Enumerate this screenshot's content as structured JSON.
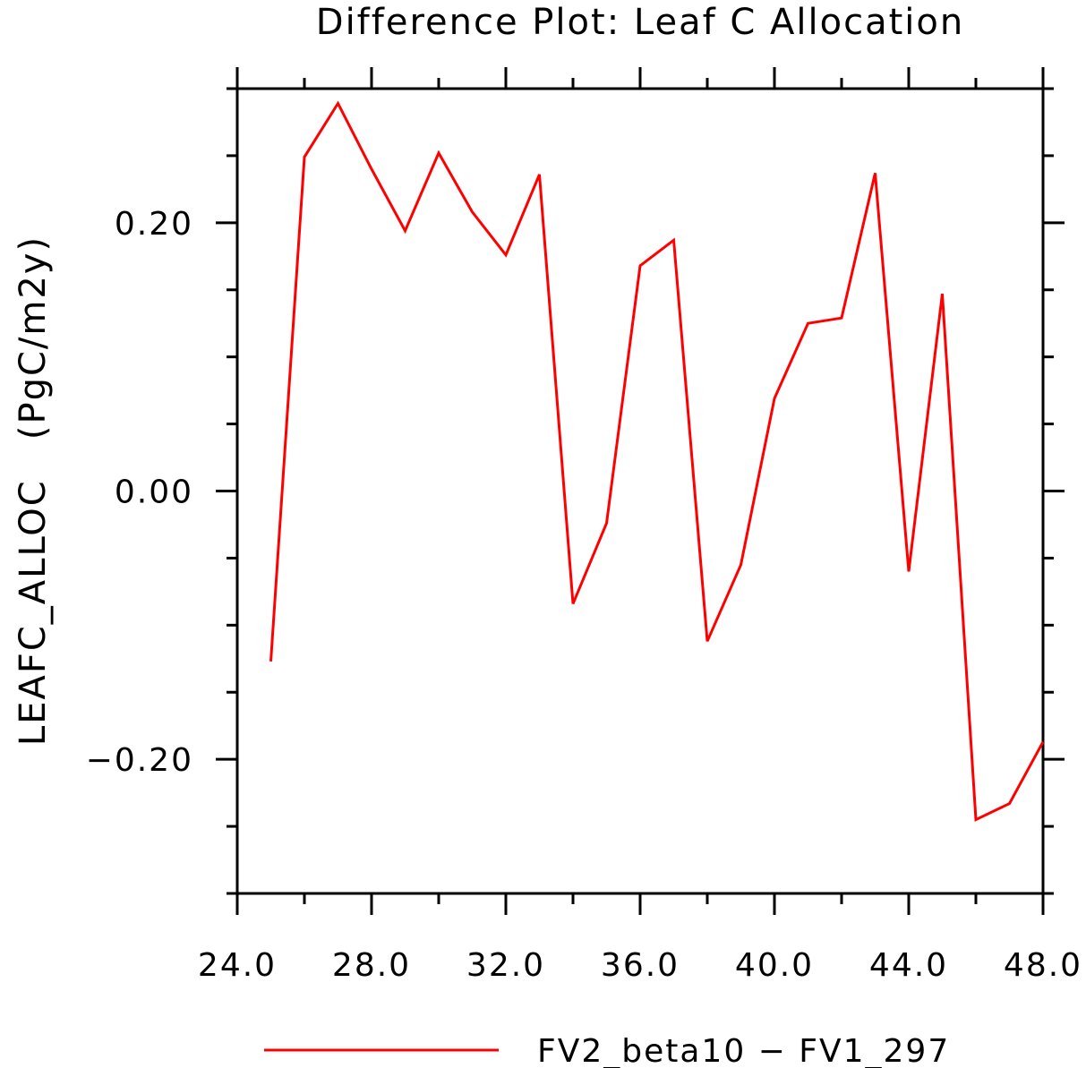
{
  "chart_data": {
    "type": "line",
    "title": "Difference Plot: Leaf C Allocation",
    "xlabel": "",
    "ylabel": "LEAFC_ALLOC   (PgC/m2y)",
    "xlim": [
      24.0,
      48.0
    ],
    "ylim": [
      -0.3,
      0.3
    ],
    "x_ticks": [
      "24.0",
      "28.0",
      "32.0",
      "36.0",
      "40.0",
      "44.0",
      "48.0"
    ],
    "y_ticks": [
      "0.20",
      "0.00",
      "−0.20"
    ],
    "grid": false,
    "legend_position": "bottom",
    "series": [
      {
        "name": "FV2_beta10 − FV1_297",
        "color": "#ff0000",
        "x": [
          25,
          26,
          27,
          28,
          29,
          30,
          31,
          32,
          33,
          34,
          35,
          36,
          37,
          38,
          39,
          40,
          41,
          42,
          43,
          44,
          45,
          46,
          47,
          48
        ],
        "y": [
          -0.127,
          0.249,
          0.289,
          0.24,
          0.194,
          0.252,
          0.208,
          0.176,
          0.236,
          -0.084,
          -0.024,
          0.168,
          0.187,
          -0.112,
          -0.055,
          0.069,
          0.125,
          0.129,
          0.237,
          -0.06,
          0.147,
          -0.245,
          -0.233,
          -0.187
        ]
      }
    ]
  }
}
